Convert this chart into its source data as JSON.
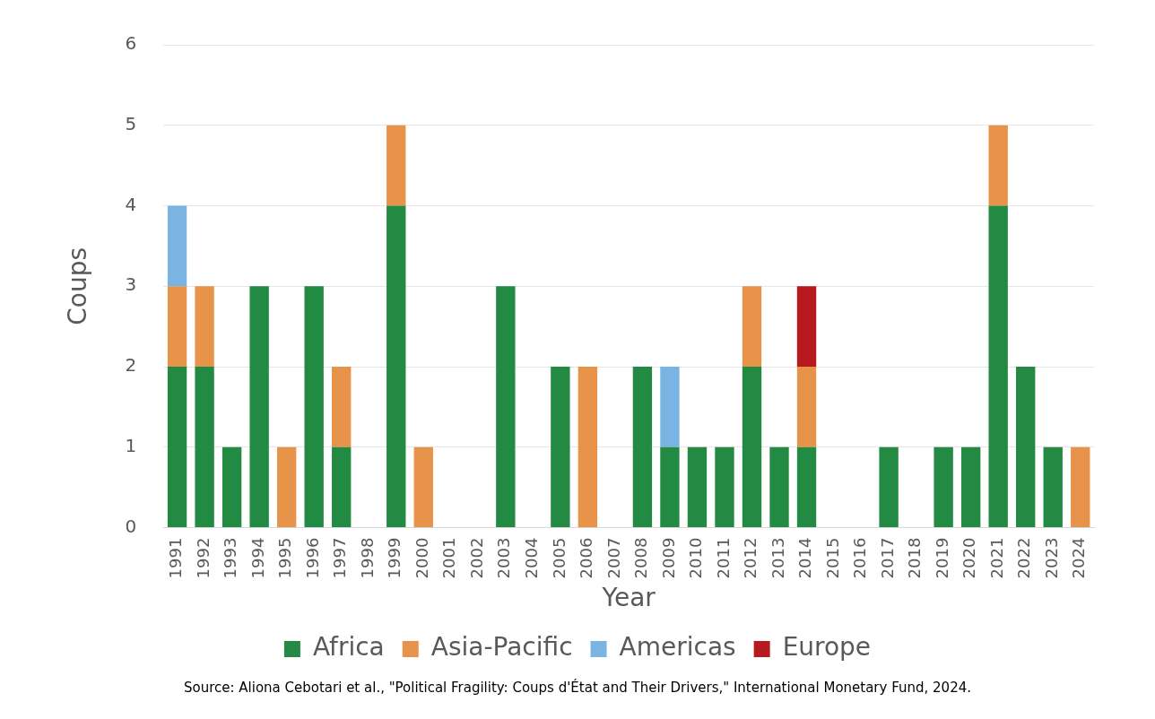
{
  "chart_data": {
    "type": "bar",
    "stacked": true,
    "xlabel": "Year",
    "ylabel": "Coups",
    "categories": [
      "1991",
      "1992",
      "1993",
      "1994",
      "1995",
      "1996",
      "1997",
      "1998",
      "1999",
      "2000",
      "2001",
      "2002",
      "2003",
      "2004",
      "2005",
      "2006",
      "2007",
      "2008",
      "2009",
      "2010",
      "2011",
      "2012",
      "2013",
      "2014",
      "2015",
      "2016",
      "2017",
      "2018",
      "2019",
      "2020",
      "2021",
      "2022",
      "2023",
      "2024"
    ],
    "series": [
      {
        "name": "Africa",
        "color": "#238a43",
        "values": [
          2,
          2,
          1,
          3,
          0,
          3,
          1,
          0,
          4,
          0,
          0,
          0,
          3,
          0,
          2,
          0,
          0,
          2,
          1,
          1,
          1,
          2,
          1,
          1,
          0,
          0,
          1,
          0,
          1,
          1,
          4,
          2,
          1,
          0
        ]
      },
      {
        "name": "Asia-Pacific",
        "color": "#e8934a",
        "values": [
          1,
          1,
          0,
          0,
          1,
          0,
          1,
          0,
          1,
          1,
          0,
          0,
          0,
          0,
          0,
          2,
          0,
          0,
          0,
          0,
          0,
          1,
          0,
          1,
          0,
          0,
          0,
          0,
          0,
          0,
          1,
          0,
          0,
          1
        ]
      },
      {
        "name": "Americas",
        "color": "#7ab4e2",
        "values": [
          1,
          0,
          0,
          0,
          0,
          0,
          0,
          0,
          0,
          0,
          0,
          0,
          0,
          0,
          0,
          0,
          0,
          0,
          1,
          0,
          0,
          0,
          0,
          0,
          0,
          0,
          0,
          0,
          0,
          0,
          0,
          0,
          0,
          0
        ]
      },
      {
        "name": "Europe",
        "color": "#b8191f",
        "values": [
          0,
          0,
          0,
          0,
          0,
          0,
          0,
          0,
          0,
          0,
          0,
          0,
          0,
          0,
          0,
          0,
          0,
          0,
          0,
          0,
          0,
          0,
          0,
          1,
          0,
          0,
          0,
          0,
          0,
          0,
          0,
          0,
          0,
          0
        ]
      }
    ],
    "ylim": [
      0,
      6
    ],
    "yticks": [
      0,
      1,
      2,
      3,
      4,
      5,
      6
    ],
    "grid": "y",
    "legend": "bottom",
    "annotations": [
      "Source: Aliona Cebotari et al., \"Political Fragility: Coups d'État and Their Drivers,\" International Monetary Fund, 2024."
    ]
  }
}
